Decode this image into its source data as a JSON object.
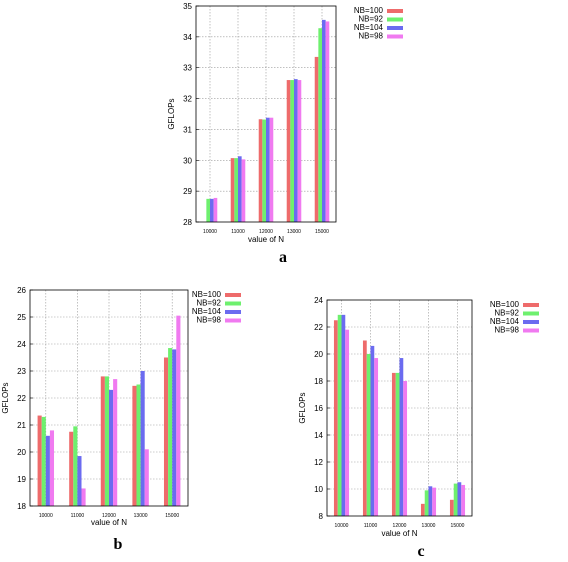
{
  "series_colors": [
    "#ee6b6b",
    "#6ef06e",
    "#6b6bf0",
    "#f07af0"
  ],
  "chart_data": [
    {
      "panel_label": "a",
      "type": "bar",
      "categories": [
        "10000",
        "11000",
        "12000",
        "13000",
        "15000"
      ],
      "series": [
        {
          "name": "NB=100",
          "values": [
            28.0,
            30.07,
            31.33,
            32.6,
            33.35
          ]
        },
        {
          "name": "NB=92",
          "values": [
            28.75,
            30.07,
            31.32,
            32.6,
            34.28
          ]
        },
        {
          "name": "NB=104",
          "values": [
            28.75,
            30.13,
            31.38,
            32.63,
            34.55
          ]
        },
        {
          "name": "NB=98",
          "values": [
            28.78,
            30.03,
            31.38,
            32.6,
            34.5
          ]
        }
      ],
      "xlabel": "value of N",
      "ylabel": "GFLOPs",
      "ylim": [
        28,
        35
      ],
      "yticks": [
        28,
        29,
        30,
        31,
        32,
        33,
        34,
        35
      ],
      "grid": true,
      "legend_position": "top-right"
    },
    {
      "panel_label": "b",
      "type": "bar",
      "categories": [
        "10000",
        "11000",
        "12000",
        "13000",
        "15000"
      ],
      "series": [
        {
          "name": "NB=100",
          "values": [
            21.35,
            20.75,
            22.8,
            22.45,
            23.5
          ]
        },
        {
          "name": "NB=92",
          "values": [
            21.3,
            20.95,
            22.8,
            22.5,
            23.85
          ]
        },
        {
          "name": "NB=104",
          "values": [
            20.6,
            19.85,
            22.3,
            23.0,
            23.8
          ]
        },
        {
          "name": "NB=98",
          "values": [
            20.8,
            18.65,
            22.7,
            20.1,
            25.05
          ]
        }
      ],
      "xlabel": "value of N",
      "ylabel": "GFLOPs",
      "ylim": [
        18,
        26
      ],
      "yticks": [
        18,
        19,
        20,
        21,
        22,
        23,
        24,
        25,
        26
      ],
      "grid": true,
      "legend_position": "top-right"
    },
    {
      "panel_label": "c",
      "type": "bar",
      "categories": [
        "10000",
        "11000",
        "12000",
        "13000",
        "15000"
      ],
      "series": [
        {
          "name": "NB=100",
          "values": [
            22.5,
            21.0,
            18.6,
            8.9,
            9.2
          ]
        },
        {
          "name": "NB=92",
          "values": [
            22.9,
            20.0,
            18.6,
            9.9,
            10.4
          ]
        },
        {
          "name": "NB=104",
          "values": [
            22.9,
            20.6,
            19.7,
            10.2,
            10.5
          ]
        },
        {
          "name": "NB=98",
          "values": [
            21.8,
            19.7,
            18.0,
            10.1,
            10.3
          ]
        }
      ],
      "xlabel": "value of N",
      "ylabel": "GFLOPs",
      "ylim": [
        8,
        24
      ],
      "yticks": [
        8,
        10,
        12,
        14,
        16,
        18,
        20,
        22,
        24
      ],
      "grid": true,
      "legend_position": "top-right"
    }
  ]
}
